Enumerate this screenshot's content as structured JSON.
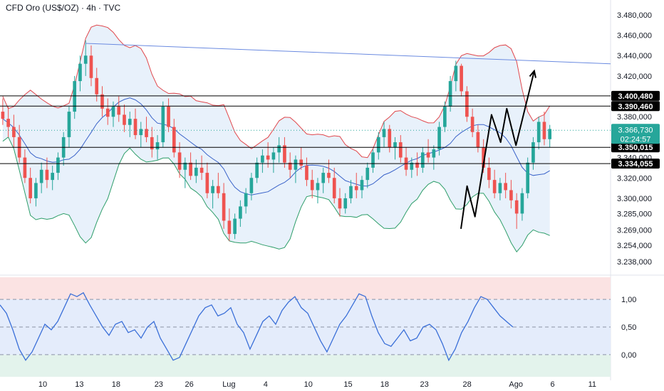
{
  "header": {
    "title": "CFD Oro (US$/OZ) · 4h · TVC"
  },
  "colors": {
    "up": "#26a69a",
    "down": "#ef5350",
    "bb_upper": "#e0474c",
    "bb_lower": "#2e9e6a",
    "bb_mid": "#3a63c9",
    "bb_fill": "#d6e6f7",
    "trend": "#6a8ae0",
    "level": "#000000",
    "current": "#26a69a",
    "rsi_line": "#3a6fd8",
    "rsi_band_upper": "#fbe3e3",
    "rsi_band_mid": "#e4ecfb",
    "rsi_band_lower": "#e3f3ec",
    "projection": "#000000"
  },
  "chart_data": [
    {
      "type": "candlestick",
      "price_axis": {
        "ticks": [
          "3.480,000",
          "3.460,000",
          "3.440,000",
          "3.420,000",
          "3.380,000",
          "3.340,000",
          "3.320,000",
          "3.300,000",
          "3.285,000",
          "3.269,000",
          "3.254,000",
          "3.238,000"
        ],
        "tick_values": [
          3480,
          3460,
          3440,
          3420,
          3380,
          3340,
          3320,
          3300,
          3285,
          3269,
          3254,
          3238
        ]
      },
      "time_axis": {
        "labels": [
          "10",
          "13",
          "18",
          "23",
          "26",
          "Lug",
          "4",
          "10",
          "15",
          "18",
          "23",
          "28",
          "Ago",
          "6",
          "11"
        ],
        "label_positions": [
          0.07,
          0.13,
          0.19,
          0.26,
          0.31,
          0.375,
          0.435,
          0.505,
          0.57,
          0.63,
          0.695,
          0.765,
          0.845,
          0.905,
          0.97
        ]
      },
      "levels": [
        {
          "label": "3.400,480",
          "value": 3400.48
        },
        {
          "label": "3.390,460",
          "value": 3390.46
        },
        {
          "label": "3.350,015",
          "value": 3350.015
        },
        {
          "label": "3.334,055",
          "value": 3334.055
        }
      ],
      "current_price": {
        "label": "3.366,730",
        "countdown": "02:24:57",
        "value": 3366.73
      },
      "trendline": {
        "start": [
          0.14,
          3452
        ],
        "end": [
          1.0,
          3432
        ]
      },
      "candles": [
        [
          3385,
          3398,
          3372,
          3378
        ],
        [
          3378,
          3390,
          3360,
          3370
        ],
        [
          3370,
          3382,
          3350,
          3360
        ],
        [
          3360,
          3372,
          3335,
          3340
        ],
        [
          3340,
          3348,
          3315,
          3320
        ],
        [
          3320,
          3330,
          3295,
          3300
        ],
        [
          3300,
          3320,
          3292,
          3315
        ],
        [
          3315,
          3335,
          3305,
          3328
        ],
        [
          3328,
          3340,
          3310,
          3318
        ],
        [
          3318,
          3332,
          3308,
          3325
        ],
        [
          3325,
          3345,
          3318,
          3340
        ],
        [
          3340,
          3365,
          3332,
          3360
        ],
        [
          3360,
          3390,
          3350,
          3385
        ],
        [
          3385,
          3420,
          3378,
          3415
        ],
        [
          3415,
          3440,
          3405,
          3432
        ],
        [
          3432,
          3455,
          3420,
          3440
        ],
        [
          3440,
          3450,
          3410,
          3418
        ],
        [
          3418,
          3428,
          3395,
          3402
        ],
        [
          3402,
          3410,
          3380,
          3388
        ],
        [
          3388,
          3398,
          3372,
          3380
        ],
        [
          3380,
          3395,
          3370,
          3390
        ],
        [
          3390,
          3400,
          3375,
          3382
        ],
        [
          3382,
          3392,
          3365,
          3372
        ],
        [
          3372,
          3385,
          3360,
          3378
        ],
        [
          3378,
          3388,
          3358,
          3362
        ],
        [
          3362,
          3375,
          3350,
          3368
        ],
        [
          3368,
          3380,
          3355,
          3360
        ],
        [
          3360,
          3370,
          3340,
          3348
        ],
        [
          3348,
          3362,
          3338,
          3355
        ],
        [
          3355,
          3395,
          3350,
          3390
        ],
        [
          3390,
          3398,
          3365,
          3370
        ],
        [
          3370,
          3378,
          3340,
          3345
        ],
        [
          3345,
          3355,
          3320,
          3328
        ],
        [
          3328,
          3340,
          3310,
          3335
        ],
        [
          3335,
          3345,
          3318,
          3322
        ],
        [
          3322,
          3338,
          3315,
          3330
        ],
        [
          3330,
          3342,
          3318,
          3325
        ],
        [
          3325,
          3335,
          3300,
          3305
        ],
        [
          3305,
          3318,
          3290,
          3312
        ],
        [
          3312,
          3325,
          3300,
          3305
        ],
        [
          3305,
          3315,
          3270,
          3278
        ],
        [
          3278,
          3290,
          3258,
          3265
        ],
        [
          3265,
          3285,
          3260,
          3280
        ],
        [
          3280,
          3298,
          3272,
          3292
        ],
        [
          3292,
          3310,
          3285,
          3305
        ],
        [
          3305,
          3325,
          3298,
          3320
        ],
        [
          3320,
          3340,
          3315,
          3335
        ],
        [
          3335,
          3348,
          3325,
          3342
        ],
        [
          3342,
          3355,
          3330,
          3338
        ],
        [
          3338,
          3350,
          3325,
          3345
        ],
        [
          3345,
          3360,
          3335,
          3352
        ],
        [
          3352,
          3360,
          3330,
          3335
        ],
        [
          3335,
          3345,
          3320,
          3328
        ],
        [
          3328,
          3342,
          3315,
          3338
        ],
        [
          3338,
          3350,
          3328,
          3332
        ],
        [
          3332,
          3340,
          3312,
          3318
        ],
        [
          3318,
          3328,
          3300,
          3308
        ],
        [
          3308,
          3320,
          3295,
          3315
        ],
        [
          3315,
          3330,
          3305,
          3325
        ],
        [
          3325,
          3338,
          3315,
          3320
        ],
        [
          3320,
          3330,
          3295,
          3300
        ],
        [
          3300,
          3310,
          3282,
          3290
        ],
        [
          3290,
          3305,
          3285,
          3300
        ],
        [
          3300,
          3318,
          3295,
          3312
        ],
        [
          3312,
          3325,
          3300,
          3308
        ],
        [
          3308,
          3322,
          3300,
          3318
        ],
        [
          3318,
          3335,
          3310,
          3330
        ],
        [
          3330,
          3348,
          3325,
          3345
        ],
        [
          3345,
          3365,
          3338,
          3360
        ],
        [
          3360,
          3375,
          3350,
          3368
        ],
        [
          3368,
          3372,
          3345,
          3350
        ],
        [
          3350,
          3360,
          3338,
          3355
        ],
        [
          3355,
          3362,
          3335,
          3340
        ],
        [
          3340,
          3350,
          3322,
          3328
        ],
        [
          3328,
          3340,
          3320,
          3335
        ],
        [
          3335,
          3345,
          3322,
          3330
        ],
        [
          3330,
          3350,
          3325,
          3345
        ],
        [
          3345,
          3358,
          3335,
          3340
        ],
        [
          3340,
          3352,
          3328,
          3348
        ],
        [
          3348,
          3375,
          3342,
          3370
        ],
        [
          3370,
          3395,
          3365,
          3390
        ],
        [
          3390,
          3420,
          3385,
          3415
        ],
        [
          3415,
          3435,
          3405,
          3430
        ],
        [
          3430,
          3432,
          3400,
          3405
        ],
        [
          3405,
          3410,
          3375,
          3380
        ],
        [
          3380,
          3388,
          3360,
          3365
        ],
        [
          3365,
          3372,
          3345,
          3350
        ],
        [
          3350,
          3358,
          3325,
          3330
        ],
        [
          3330,
          3340,
          3310,
          3318
        ],
        [
          3318,
          3328,
          3300,
          3305
        ],
        [
          3305,
          3320,
          3298,
          3315
        ],
        [
          3315,
          3325,
          3300,
          3308
        ],
        [
          3308,
          3318,
          3290,
          3298
        ],
        [
          3298,
          3305,
          3270,
          3285
        ],
        [
          3285,
          3310,
          3278,
          3305
        ],
        [
          3305,
          3340,
          3300,
          3335
        ],
        [
          3335,
          3360,
          3328,
          3355
        ],
        [
          3355,
          3380,
          3348,
          3375
        ],
        [
          3375,
          3385,
          3352,
          3358
        ],
        [
          3358,
          3372,
          3350,
          3368
        ]
      ],
      "projection_path": [
        [
          0.755,
          3270
        ],
        [
          0.765,
          3312
        ],
        [
          0.778,
          3282
        ],
        [
          0.805,
          3382
        ],
        [
          0.82,
          3355
        ],
        [
          0.83,
          3388
        ],
        [
          0.845,
          3352
        ],
        [
          0.875,
          3425
        ]
      ]
    },
    {
      "type": "line",
      "series": [
        {
          "values": [
            0.9,
            0.75,
            0.45,
            0.1,
            -0.1,
            0.05,
            0.3,
            0.55,
            0.45,
            0.6,
            0.85,
            1.1,
            1.05,
            1.12,
            0.9,
            0.7,
            0.5,
            0.35,
            0.55,
            0.6,
            0.4,
            0.45,
            0.3,
            0.5,
            0.6,
            0.3,
            0.1,
            -0.1,
            -0.05,
            0.2,
            0.45,
            0.7,
            0.85,
            0.9,
            0.7,
            0.75,
            0.85,
            0.55,
            0.4,
            0.1,
            0.35,
            0.6,
            0.7,
            0.55,
            0.8,
            0.95,
            1.05,
            0.85,
            0.75,
            0.5,
            0.25,
            0.05,
            0.3,
            0.55,
            0.7,
            0.9,
            1.1,
            1.05,
            0.7,
            0.4,
            0.2,
            0.15,
            0.3,
            0.45,
            0.25,
            0.3,
            0.5,
            0.55,
            0.45,
            0.2,
            -0.1,
            0.1,
            0.4,
            0.6,
            0.85,
            1.05,
            1.0,
            0.85,
            0.7,
            0.6,
            0.5
          ]
        }
      ],
      "rsi_axis": {
        "ticks": [
          "1,00",
          "0,50",
          "0,00"
        ],
        "tick_values": [
          1.0,
          0.5,
          0.0
        ]
      },
      "ylim": [
        -0.4,
        1.4
      ]
    }
  ]
}
